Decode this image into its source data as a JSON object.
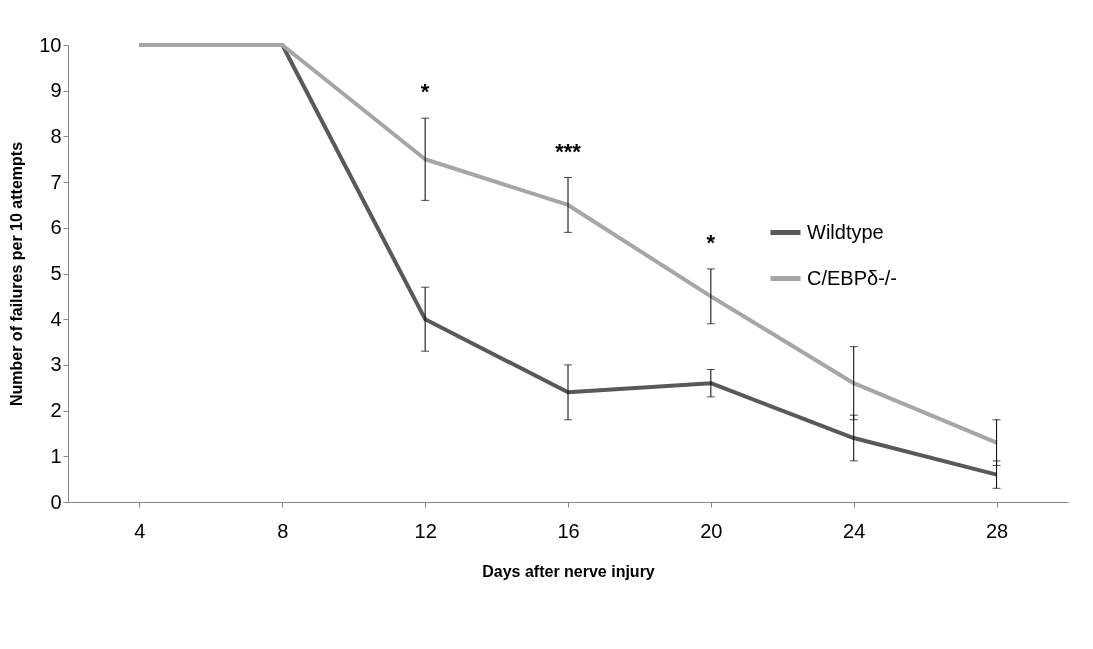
{
  "chart_data": {
    "type": "line",
    "xlabel": "Days after  nerve injury",
    "ylabel": "Number of failures per 10 attempts",
    "categories": [
      "4",
      "8",
      "12",
      "16",
      "20",
      "24",
      "28"
    ],
    "series": [
      {
        "name": "Wildtype",
        "color": "#595959",
        "values": [
          10,
          10,
          4.0,
          2.4,
          2.6,
          1.4,
          0.6
        ],
        "errors": [
          null,
          null,
          0.7,
          0.6,
          0.3,
          0.5,
          0.3
        ]
      },
      {
        "name": "C/EBPδ-/-",
        "color": "#a6a6a6",
        "values": [
          10,
          10,
          7.5,
          6.5,
          4.5,
          2.6,
          1.3
        ],
        "errors": [
          null,
          null,
          0.9,
          0.6,
          0.6,
          0.8,
          0.5
        ]
      }
    ],
    "ylim": [
      0,
      10
    ],
    "yticks": [
      0,
      1,
      2,
      3,
      4,
      5,
      6,
      7,
      8,
      9,
      10
    ],
    "grid": false,
    "legend": "top right",
    "marker": "none",
    "line_style": "solid",
    "annotations": [
      "*",
      "***",
      "*"
    ]
  }
}
